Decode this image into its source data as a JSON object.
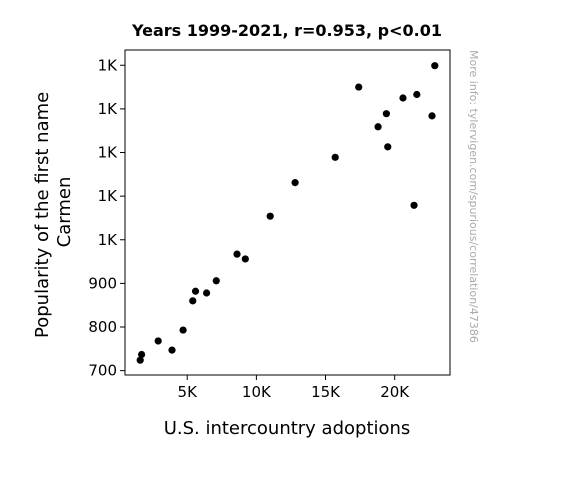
{
  "chart_data": {
    "type": "scatter",
    "title": "Years 1999-2021, r=0.953, p<0.01",
    "xlabel": "U.S. intercountry adoptions",
    "ylabel_lines": [
      "Popularity of the first name",
      "Carmen"
    ],
    "source_note": "More info: tylervigen.com/spurious/correlation/47386",
    "xlim": [
      500,
      24000
    ],
    "ylim": [
      690,
      1435
    ],
    "x_ticks": [
      {
        "value": 5000,
        "label": "5K"
      },
      {
        "value": 10000,
        "label": "10K"
      },
      {
        "value": 15000,
        "label": "15K"
      },
      {
        "value": 20000,
        "label": "20K"
      }
    ],
    "y_ticks": [
      {
        "value": 700,
        "label": "700"
      },
      {
        "value": 800,
        "label": "800"
      },
      {
        "value": 900,
        "label": "900"
      },
      {
        "value": 1000,
        "label": "1K"
      },
      {
        "value": 1100,
        "label": "1K"
      },
      {
        "value": 1200,
        "label": "1K"
      },
      {
        "value": 1300,
        "label": "1K"
      },
      {
        "value": 1400,
        "label": "1K"
      }
    ],
    "points": [
      {
        "x": 1600,
        "y": 724
      },
      {
        "x": 1700,
        "y": 737
      },
      {
        "x": 2900,
        "y": 768
      },
      {
        "x": 3900,
        "y": 747
      },
      {
        "x": 4700,
        "y": 793
      },
      {
        "x": 5400,
        "y": 860
      },
      {
        "x": 5600,
        "y": 882
      },
      {
        "x": 6400,
        "y": 878
      },
      {
        "x": 7100,
        "y": 906
      },
      {
        "x": 8600,
        "y": 967
      },
      {
        "x": 9200,
        "y": 956
      },
      {
        "x": 11000,
        "y": 1054
      },
      {
        "x": 12800,
        "y": 1131
      },
      {
        "x": 15700,
        "y": 1189
      },
      {
        "x": 17400,
        "y": 1350
      },
      {
        "x": 18800,
        "y": 1259
      },
      {
        "x": 19400,
        "y": 1289
      },
      {
        "x": 19500,
        "y": 1213
      },
      {
        "x": 20600,
        "y": 1325
      },
      {
        "x": 21400,
        "y": 1079
      },
      {
        "x": 21600,
        "y": 1333
      },
      {
        "x": 22700,
        "y": 1284
      },
      {
        "x": 22900,
        "y": 1399
      }
    ],
    "marker_color": "#000000",
    "grid": false,
    "legend": "none"
  }
}
